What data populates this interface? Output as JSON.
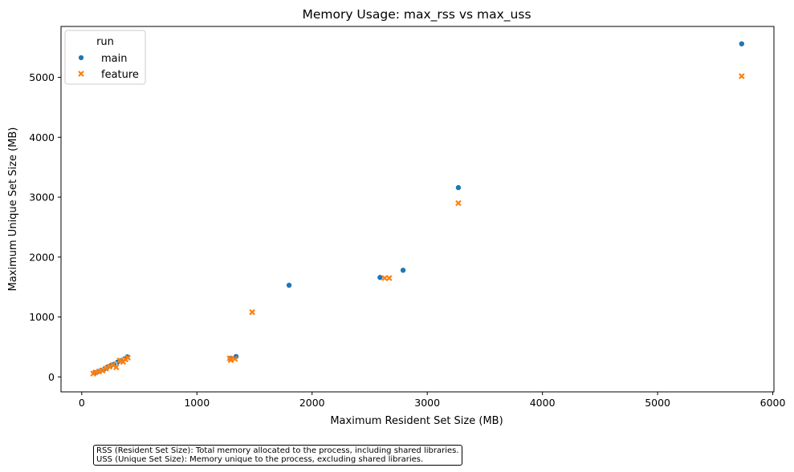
{
  "chart_data": {
    "type": "scatter",
    "title": "Memory Usage: max_rss vs max_uss",
    "xlabel": "Maximum Resident Set Size (MB)",
    "ylabel": "Maximum Unique Set Size (MB)",
    "xlim": [
      -180,
      6010
    ],
    "ylim": [
      -250,
      5850
    ],
    "xticks": [
      0,
      1000,
      2000,
      3000,
      4000,
      5000,
      6000
    ],
    "yticks": [
      0,
      1000,
      2000,
      3000,
      4000,
      5000
    ],
    "grid": false,
    "legend": {
      "title": "run",
      "placement": "top-left",
      "entries": [
        "main",
        "feature"
      ]
    },
    "series": [
      {
        "name": "main",
        "marker": "circle",
        "color": "#1f77b4",
        "points": [
          [
            5730,
            5560
          ],
          [
            3270,
            3160
          ],
          [
            2790,
            1780
          ],
          [
            2590,
            1660
          ],
          [
            1800,
            1530
          ],
          [
            1340,
            340
          ],
          [
            1290,
            310
          ],
          [
            395,
            335
          ],
          [
            370,
            300
          ],
          [
            340,
            270
          ],
          [
            310,
            245
          ],
          [
            280,
            210
          ],
          [
            250,
            185
          ],
          [
            220,
            160
          ],
          [
            195,
            130
          ],
          [
            165,
            110
          ],
          [
            140,
            90
          ],
          [
            115,
            70
          ]
        ]
      },
      {
        "name": "feature",
        "marker": "x",
        "color": "#ff7f0e",
        "points": [
          [
            5730,
            5020
          ],
          [
            3270,
            2900
          ],
          [
            2670,
            1650
          ],
          [
            2630,
            1650
          ],
          [
            1480,
            1080
          ],
          [
            1330,
            300
          ],
          [
            1295,
            280
          ],
          [
            1285,
            310
          ],
          [
            400,
            320
          ],
          [
            380,
            290
          ],
          [
            360,
            250
          ],
          [
            330,
            275
          ],
          [
            300,
            160
          ],
          [
            270,
            200
          ],
          [
            240,
            170
          ],
          [
            210,
            140
          ],
          [
            180,
            105
          ],
          [
            150,
            90
          ],
          [
            120,
            75
          ],
          [
            100,
            55
          ]
        ]
      }
    ]
  },
  "notes": {
    "rss": "RSS (Resident Set Size): Total memory allocated to the process, including shared libraries.",
    "uss": "USS (Unique Set Size): Memory unique to the process, excluding shared libraries."
  }
}
